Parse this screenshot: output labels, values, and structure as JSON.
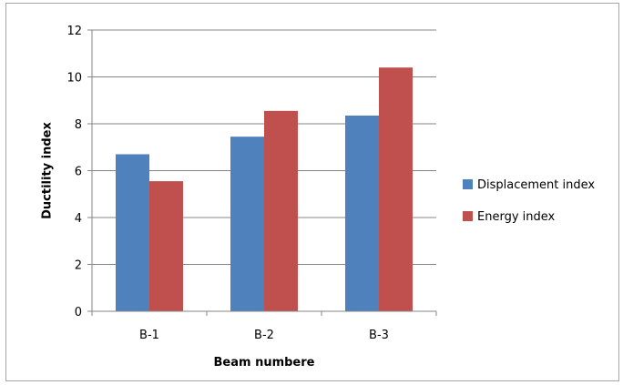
{
  "chart_data": {
    "type": "bar",
    "title": "",
    "xlabel": "Beam numbere",
    "ylabel": "Ductility index",
    "categories": [
      "B-1",
      "B-2",
      "B-3"
    ],
    "series": [
      {
        "name": "Displacement index",
        "color": "#4f81bd",
        "values": [
          6.7,
          7.45,
          8.35
        ]
      },
      {
        "name": "Energy index",
        "color": "#c0504d",
        "values": [
          5.55,
          8.55,
          10.4
        ]
      }
    ],
    "ylim": [
      0,
      12
    ],
    "yticks": [
      0,
      2,
      4,
      6,
      8,
      10,
      12
    ],
    "grid": true,
    "legend": "right"
  }
}
